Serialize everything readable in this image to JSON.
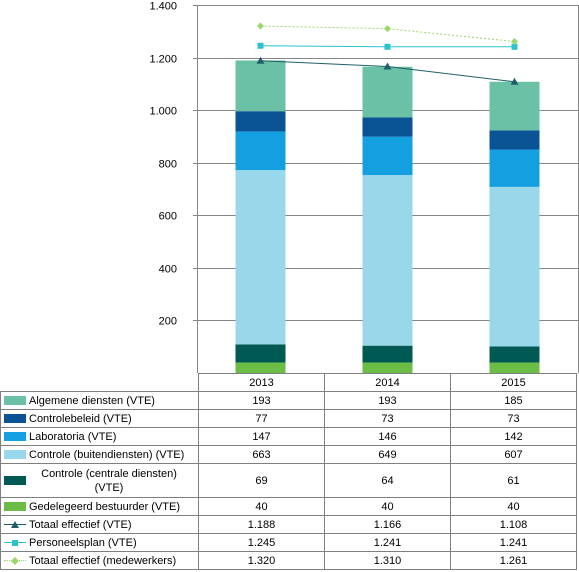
{
  "chart_data": {
    "type": "bar",
    "categories": [
      "2013",
      "2014",
      "2015"
    ],
    "ylim": [
      0,
      1400
    ],
    "yticks": [
      "-",
      "200",
      "400",
      "600",
      "800",
      "1.000",
      "1.200",
      "1.400"
    ],
    "stacked_series": [
      {
        "name": "Gedelegeerd bestuurder (VTE)",
        "values": [
          40,
          40,
          40
        ],
        "display": [
          "40",
          "40",
          "40"
        ],
        "color": "#6cbd45"
      },
      {
        "name": "Controle (centrale diensten) (VTE)",
        "values": [
          69,
          64,
          61
        ],
        "display": [
          "69",
          "64",
          "61"
        ],
        "color": "#005a53"
      },
      {
        "name": "Controle (buitendiensten) (VTE)",
        "values": [
          663,
          649,
          607
        ],
        "display": [
          "663",
          "649",
          "607"
        ],
        "color": "#98d8ea"
      },
      {
        "name": "Laboratoria (VTE)",
        "values": [
          147,
          146,
          142
        ],
        "display": [
          "147",
          "146",
          "142"
        ],
        "color": "#14a0e0"
      },
      {
        "name": "Controlebeleid (VTE)",
        "values": [
          77,
          73,
          73
        ],
        "display": [
          "77",
          "73",
          "73"
        ],
        "color": "#0a5495"
      },
      {
        "name": "Algemene diensten (VTE)",
        "values": [
          193,
          193,
          185
        ],
        "display": [
          "193",
          "193",
          "185"
        ],
        "color": "#6ac1a5"
      }
    ],
    "line_series": [
      {
        "name": "Totaal effectief (VTE)",
        "values": [
          1188,
          1166,
          1108
        ],
        "display": [
          "1.188",
          "1.166",
          "1.108"
        ],
        "color": "#1f5f6b",
        "marker": "triangle",
        "dash": "solid"
      },
      {
        "name": "Personeelsplan (VTE)",
        "values": [
          1245,
          1241,
          1241
        ],
        "display": [
          "1.245",
          "1.241",
          "1.241"
        ],
        "color": "#2cc2cf",
        "marker": "square",
        "dash": "solid"
      },
      {
        "name": "Totaal effectief (medewerkers)",
        "values": [
          1320,
          1310,
          1261
        ],
        "display": [
          "1.320",
          "1.310",
          "1.261"
        ],
        "color": "#9bd86a",
        "marker": "diamond",
        "dash": "dotted"
      }
    ],
    "table_rows_order": [
      "Algemene diensten (VTE)",
      "Controlebeleid (VTE)",
      "Laboratoria (VTE)",
      "Controle (buitendiensten) (VTE)",
      "Controle (centrale diensten) (VTE)",
      "Gedelegeerd bestuurder (VTE)",
      "Totaal effectief (VTE)",
      "Personeelsplan (VTE)",
      "Totaal effectief (medewerkers)"
    ],
    "grid": true,
    "legend": "data table"
  }
}
